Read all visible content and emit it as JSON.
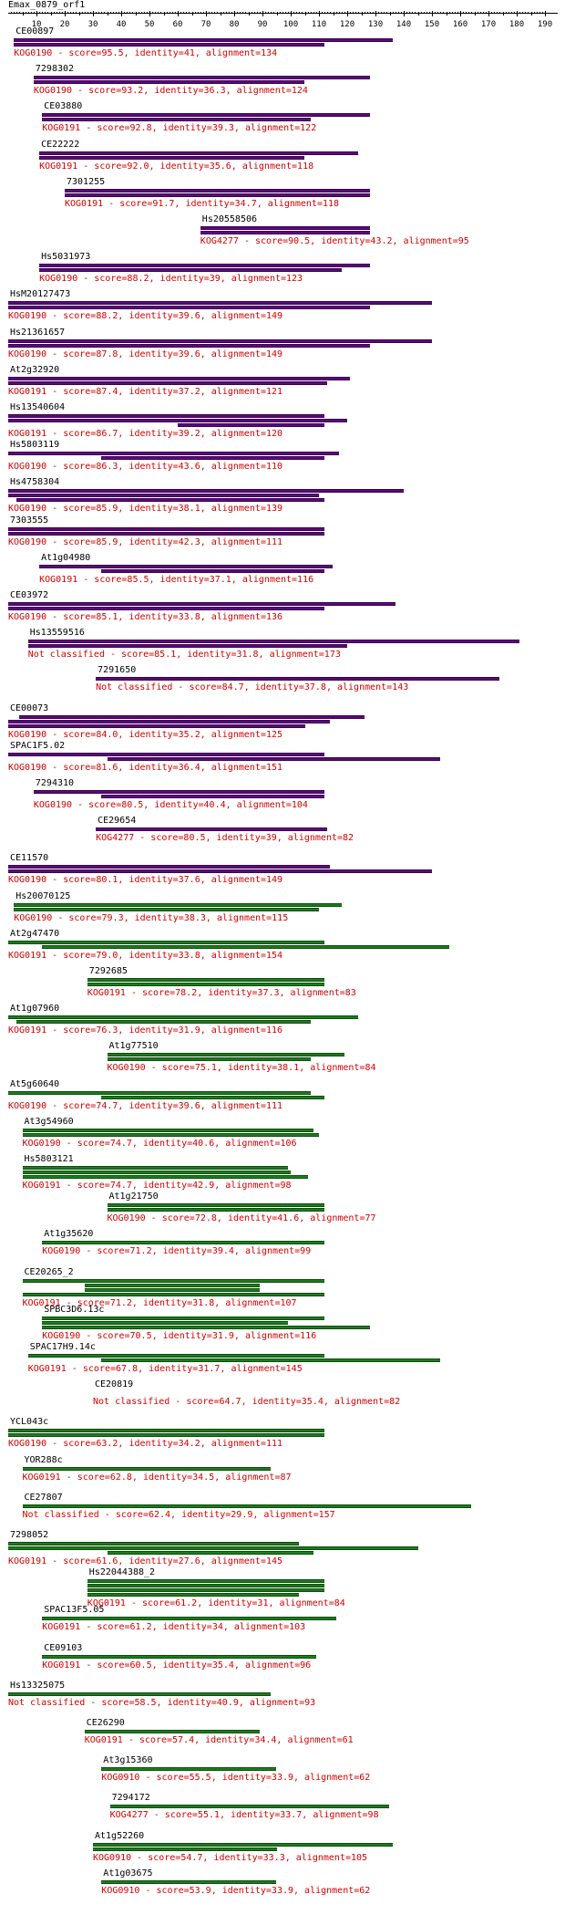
{
  "query": {
    "title": "Emax_0879_orf1",
    "axis_ticks": [
      "10",
      "20",
      "30",
      "40",
      "50",
      "60",
      "70",
      "80",
      "90",
      "100",
      "110",
      "120",
      "130",
      "140",
      "150",
      "160",
      "170",
      "180",
      "190"
    ]
  },
  "colors": {
    "best_hit": "#5b0a7a",
    "other_hit": "#1f7a1f",
    "label": "#d40000"
  },
  "hits": [
    {
      "name": "CE00897",
      "desc": "KOG0190 - score=95.5, identity=41, alignment=134",
      "start": 2,
      "color": "purple",
      "segs": [
        [
          2,
          136
        ],
        [
          2,
          112
        ]
      ]
    },
    {
      "name": "7298302",
      "desc": "KOG0190 - score=93.2, identity=36.3, alignment=124",
      "start": 9,
      "color": "purple",
      "segs": [
        [
          9,
          128
        ],
        [
          9,
          105
        ]
      ]
    },
    {
      "name": "CE03880",
      "desc": "KOG0191 - score=92.8, identity=39.3, alignment=122",
      "start": 12,
      "color": "purple",
      "segs": [
        [
          12,
          128
        ],
        [
          12,
          107
        ]
      ]
    },
    {
      "name": "CE22222",
      "desc": "KOG0191 - score=92.0, identity=35.6, alignment=118",
      "start": 11,
      "color": "purple",
      "segs": [
        [
          11,
          124
        ],
        [
          11,
          105
        ]
      ]
    },
    {
      "name": "7301255",
      "desc": "KOG0191 - score=91.7, identity=34.7, alignment=118",
      "start": 20,
      "color": "purple",
      "segs": [
        [
          20,
          128
        ],
        [
          20,
          128
        ]
      ]
    },
    {
      "name": "Hs20558506",
      "desc": "KOG4277 - score=90.5, identity=43.2, alignment=95",
      "start": 68,
      "color": "purple",
      "segs": [
        [
          68,
          128
        ],
        [
          68,
          128
        ]
      ]
    },
    {
      "name": "Hs5031973",
      "desc": "KOG0190 - score=88.2, identity=39, alignment=123",
      "start": 11,
      "color": "purple",
      "segs": [
        [
          11,
          128
        ],
        [
          11,
          118
        ]
      ]
    },
    {
      "name": "HsM20127473",
      "desc": "KOG0190 - score=88.2, identity=39.6, alignment=149",
      "start": 0,
      "color": "purple",
      "segs": [
        [
          0,
          150
        ],
        [
          0,
          128
        ]
      ]
    },
    {
      "name": "Hs21361657",
      "desc": "KOG0190 - score=87.8, identity=39.6, alignment=149",
      "start": 0,
      "color": "purple",
      "segs": [
        [
          0,
          150
        ],
        [
          0,
          128
        ]
      ]
    },
    {
      "name": "At2g32920",
      "desc": "KOG0191 - score=87.4, identity=37.2, alignment=121",
      "start": 0,
      "color": "purple",
      "segs": [
        [
          0,
          121
        ],
        [
          0,
          113
        ]
      ]
    },
    {
      "name": "Hs13540604",
      "desc": "KOG0191 - score=86.7, identity=39.2, alignment=120",
      "start": 0,
      "color": "purple",
      "segs": [
        [
          0,
          112
        ],
        [
          0,
          120
        ],
        [
          60,
          112
        ]
      ]
    },
    {
      "name": "Hs5803119",
      "desc": "KOG0190 - score=86.3, identity=43.6, alignment=110",
      "start": 0,
      "color": "purple",
      "segs": [
        [
          0,
          117
        ],
        [
          33,
          112
        ]
      ]
    },
    {
      "name": "Hs4758304",
      "desc": "KOG0190 - score=85.9, identity=38.1, alignment=139",
      "start": 0,
      "color": "purple",
      "segs": [
        [
          0,
          140
        ],
        [
          0,
          110
        ],
        [
          3,
          112
        ]
      ]
    },
    {
      "name": "7303555",
      "desc": "KOG0190 - score=85.9, identity=42.3, alignment=111",
      "start": 0,
      "color": "purple",
      "segs": [
        [
          0,
          112
        ],
        [
          0,
          112
        ]
      ]
    },
    {
      "name": "At1g04980",
      "desc": "KOG0191 - score=85.5, identity=37.1, alignment=116",
      "start": 11,
      "color": "purple",
      "segs": [
        [
          11,
          115
        ],
        [
          33,
          112
        ]
      ]
    },
    {
      "name": "CE03972",
      "desc": "KOG0190 - score=85.1, identity=33.8, alignment=136",
      "start": 0,
      "color": "purple",
      "segs": [
        [
          0,
          137
        ],
        [
          0,
          112
        ]
      ]
    },
    {
      "name": "Hs13559516",
      "desc": "Not classified - score=85.1, identity=31.8, alignment=173",
      "start": 7,
      "color": "purple",
      "segs": [
        [
          7,
          181
        ],
        [
          7,
          120
        ]
      ]
    },
    {
      "name": "7291650",
      "desc": "Not classified - score=84.7, identity=37.8, alignment=143",
      "start": 31,
      "color": "purple",
      "segs": [
        [
          31,
          174
        ]
      ]
    },
    {
      "name": "CE00073",
      "desc": "KOG0190 - score=84.0, identity=35.2, alignment=125",
      "start": 0,
      "color": "purple",
      "segs": [
        [
          4,
          126
        ],
        [
          0,
          114
        ],
        [
          0,
          105
        ]
      ]
    },
    {
      "name": "SPAC1F5.02",
      "desc": "KOG0190 - score=81.6, identity=36.4, alignment=151",
      "start": 0,
      "color": "purple",
      "segs": [
        [
          0,
          112
        ],
        [
          35,
          153
        ]
      ]
    },
    {
      "name": "7294310",
      "desc": "KOG0190 - score=80.5, identity=40.4, alignment=104",
      "start": 9,
      "color": "purple",
      "segs": [
        [
          9,
          112
        ],
        [
          33,
          112
        ]
      ]
    },
    {
      "name": "CE29654",
      "desc": "KOG4277 - score=80.5, identity=39, alignment=82",
      "start": 31,
      "color": "purple",
      "segs": [
        [
          31,
          113
        ]
      ]
    },
    {
      "name": "CE11570",
      "desc": "KOG0190 - score=80.1, identity=37.6, alignment=149",
      "start": 0,
      "color": "purple",
      "segs": [
        [
          0,
          114
        ],
        [
          0,
          150
        ]
      ]
    },
    {
      "name": "Hs20070125",
      "desc": "KOG0190 - score=79.3, identity=38.3, alignment=115",
      "start": 2,
      "color": "green",
      "segs": [
        [
          2,
          118
        ],
        [
          2,
          110
        ]
      ]
    },
    {
      "name": "At2g47470",
      "desc": "KOG0191 - score=79.0, identity=33.8, alignment=154",
      "start": 0,
      "color": "green",
      "segs": [
        [
          0,
          112
        ],
        [
          12,
          156
        ]
      ]
    },
    {
      "name": "7292685",
      "desc": "KOG0191 - score=78.2, identity=37.3, alignment=83",
      "start": 28,
      "color": "green",
      "segs": [
        [
          28,
          112
        ],
        [
          28,
          112
        ]
      ]
    },
    {
      "name": "At1g07960",
      "desc": "KOG0191 - score=76.3, identity=31.9, alignment=116",
      "start": 0,
      "color": "green",
      "segs": [
        [
          0,
          124
        ],
        [
          3,
          107
        ]
      ]
    },
    {
      "name": "At1g77510",
      "desc": "KOG0190 - score=75.1, identity=38.1, alignment=84",
      "start": 35,
      "color": "green",
      "segs": [
        [
          35,
          119
        ],
        [
          35,
          107
        ]
      ]
    },
    {
      "name": "At5g60640",
      "desc": "KOG0190 - score=74.7, identity=39.6, alignment=111",
      "start": 0,
      "color": "green",
      "segs": [
        [
          0,
          107
        ],
        [
          33,
          112
        ]
      ]
    },
    {
      "name": "At3g54960",
      "desc": "KOG0190 - score=74.7, identity=40.6, alignment=106",
      "start": 5,
      "color": "green",
      "segs": [
        [
          5,
          108
        ],
        [
          5,
          110
        ]
      ]
    },
    {
      "name": "Hs5803121",
      "desc": "KOG0191 - score=74.7, identity=42.9, alignment=98",
      "start": 5,
      "color": "green",
      "segs": [
        [
          5,
          99
        ],
        [
          5,
          100
        ],
        [
          5,
          106
        ]
      ]
    },
    {
      "name": "At1g21750",
      "desc": "KOG0190 - score=72.8, identity=41.6, alignment=77",
      "start": 35,
      "color": "green",
      "segs": [
        [
          35,
          112
        ],
        [
          35,
          112
        ]
      ]
    },
    {
      "name": "At1g35620",
      "desc": "KOG0190 - score=71.2, identity=39.4, alignment=99",
      "start": 12,
      "color": "green",
      "segs": [
        [
          12,
          112
        ]
      ]
    },
    {
      "name": "CE20265_2",
      "desc": "KOG0191 - score=71.2, identity=31.8, alignment=107",
      "start": 5,
      "color": "green",
      "segs": [
        [
          5,
          112
        ],
        [
          27,
          89
        ],
        [
          27,
          89
        ],
        [
          5,
          112
        ]
      ]
    },
    {
      "name": "SPBC3D6.13c",
      "desc": "KOG0190 - score=70.5, identity=31.9, alignment=116",
      "start": 12,
      "color": "green",
      "segs": [
        [
          12,
          112
        ],
        [
          12,
          99
        ],
        [
          12,
          128
        ]
      ]
    },
    {
      "name": "SPAC17H9.14c",
      "desc": "KOG0191 - score=67.8, identity=31.7, alignment=145",
      "start": 7,
      "color": "green",
      "segs": [
        [
          7,
          112
        ],
        [
          33,
          153
        ]
      ]
    },
    {
      "name": "CE20819",
      "desc": "Not classified - score=64.7, identity=35.4, alignment=82",
      "start": 30,
      "color": "green",
      "segs": []
    },
    {
      "name": "YCL043c",
      "desc": "KOG0190 - score=63.2, identity=34.2, alignment=111",
      "start": 0,
      "color": "green",
      "segs": [
        [
          0,
          112
        ],
        [
          0,
          112
        ]
      ]
    },
    {
      "name": "YOR288c",
      "desc": "KOG0191 - score=62.8, identity=34.5, alignment=87",
      "start": 5,
      "color": "green",
      "segs": [
        [
          5,
          93
        ]
      ]
    },
    {
      "name": "CE27807",
      "desc": "Not classified - score=62.4, identity=29.9, alignment=157",
      "start": 5,
      "color": "green",
      "segs": [
        [
          5,
          164
        ]
      ]
    },
    {
      "name": "7298052",
      "desc": "KOG0191 - score=61.6, identity=27.6, alignment=145",
      "start": 0,
      "color": "green",
      "segs": [
        [
          0,
          103
        ],
        [
          0,
          145
        ],
        [
          35,
          108
        ]
      ]
    },
    {
      "name": "Hs22044388_2",
      "desc": "KOG0191 - score=61.2, identity=31, alignment=84",
      "start": 28,
      "color": "green",
      "segs": [
        [
          28,
          112
        ],
        [
          28,
          112
        ],
        [
          28,
          112
        ],
        [
          28,
          103
        ]
      ]
    },
    {
      "name": "SPAC13F5.05",
      "desc": "KOG0191 - score=61.2, identity=34, alignment=103",
      "start": 12,
      "color": "green",
      "segs": [
        [
          12,
          116
        ]
      ]
    },
    {
      "name": "CE09103",
      "desc": "KOG0191 - score=60.5, identity=35.4, alignment=96",
      "start": 12,
      "color": "green",
      "segs": [
        [
          12,
          109
        ]
      ]
    },
    {
      "name": "Hs13325075",
      "desc": "Not classified - score=58.5, identity=40.9, alignment=93",
      "start": 0,
      "color": "green",
      "segs": [
        [
          0,
          93
        ]
      ]
    },
    {
      "name": "CE26290",
      "desc": "KOG0191 - score=57.4, identity=34.4, alignment=61",
      "start": 27,
      "color": "green",
      "segs": [
        [
          27,
          89
        ]
      ]
    },
    {
      "name": "At3g15360",
      "desc": "KOG0910 - score=55.5, identity=33.9, alignment=62",
      "start": 33,
      "color": "green",
      "segs": [
        [
          33,
          95
        ]
      ]
    },
    {
      "name": "7294172",
      "desc": "KOG4277 - score=55.1, identity=33.7, alignment=98",
      "start": 36,
      "color": "green",
      "segs": [
        [
          36,
          135
        ]
      ]
    },
    {
      "name": "At1g52260",
      "desc": "KOG0910 - score=54.7, identity=33.3, alignment=105",
      "start": 30,
      "color": "green",
      "segs": [
        [
          30,
          136
        ],
        [
          30,
          95
        ]
      ]
    },
    {
      "name": "At1g03675",
      "desc": "KOG0910 - score=53.9, identity=33.9, alignment=62",
      "start": 33,
      "color": "green",
      "segs": [
        [
          33,
          95
        ]
      ]
    }
  ]
}
